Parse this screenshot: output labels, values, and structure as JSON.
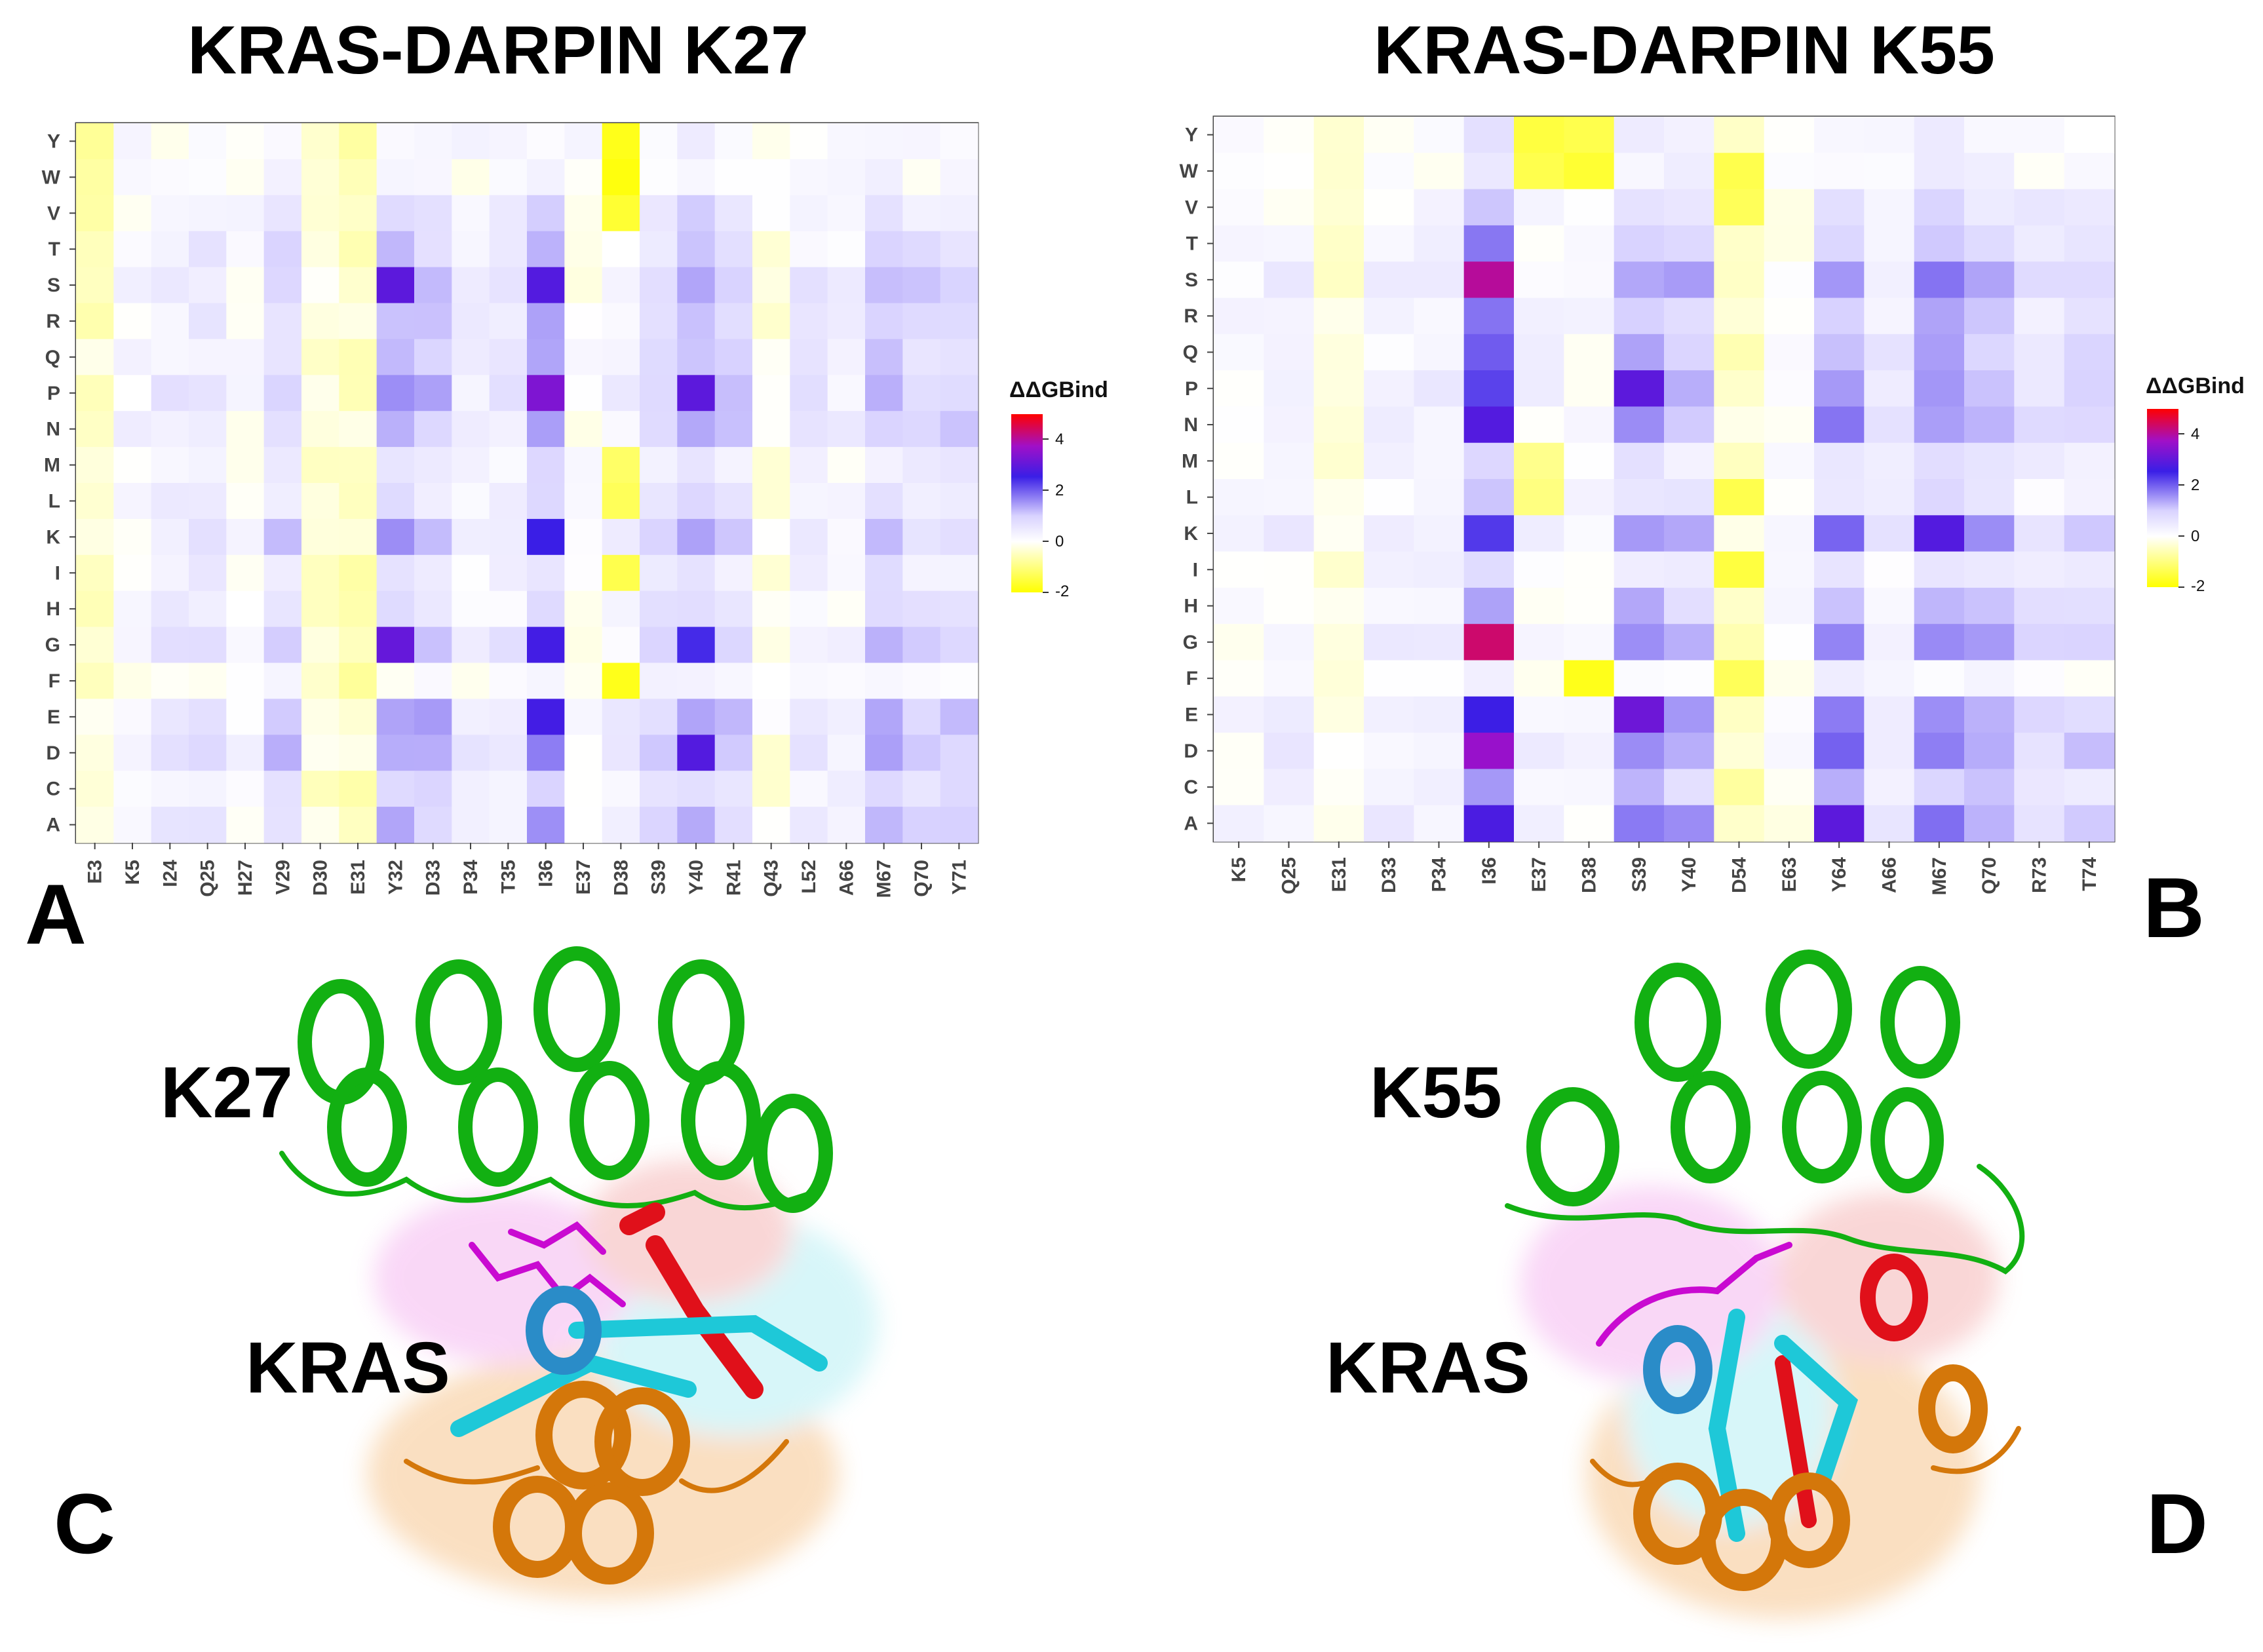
{
  "colors": {
    "low": "#ffff00",
    "zero": "#ffffff",
    "mid": "#3a1ee6",
    "high": "#ff0000",
    "helix_green": "#12b012",
    "kras_orange": "#d4770a",
    "kras_cyan": "#1ec8d8",
    "kras_magenta": "#c90ad1",
    "kras_red": "#e0101a"
  },
  "chart_data": [
    {
      "type": "heatmap",
      "title": "KRAS-DARPIN K27",
      "panel": "A",
      "x_categories": [
        "E3",
        "K5",
        "I24",
        "Q25",
        "H27",
        "V29",
        "D30",
        "E31",
        "Y32",
        "D33",
        "P34",
        "T35",
        "I36",
        "E37",
        "D38",
        "S39",
        "Y40",
        "R41",
        "Q43",
        "L52",
        "A66",
        "M67",
        "Q70",
        "Y71"
      ],
      "y_categories": [
        "Y",
        "W",
        "V",
        "T",
        "S",
        "R",
        "Q",
        "P",
        "N",
        "M",
        "L",
        "K",
        "I",
        "H",
        "G",
        "F",
        "E",
        "D",
        "C",
        "A"
      ],
      "column_base": [
        -0.5,
        0.2,
        0.5,
        0.6,
        0.1,
        1.0,
        -0.4,
        -0.5,
        1.4,
        1.2,
        0.4,
        0.5,
        1.6,
        0.0,
        0.3,
        0.8,
        1.5,
        1.0,
        -0.2,
        0.5,
        0.3,
        1.2,
        0.9,
        1.0
      ],
      "row_scale": [
        0.15,
        0.15,
        0.55,
        0.75,
        1.0,
        0.75,
        0.8,
        1.0,
        0.9,
        0.45,
        0.5,
        0.95,
        0.5,
        0.6,
        1.05,
        0.1,
        1.05,
        1.05,
        0.6,
        0.85
      ],
      "overrides": [
        {
          "row": "S",
          "col": "Y32",
          "value": 2.9
        },
        {
          "row": "S",
          "col": "I36",
          "value": 2.8
        },
        {
          "row": "P",
          "col": "I36",
          "value": 3.3
        },
        {
          "row": "P",
          "col": "Y40",
          "value": 2.9
        },
        {
          "row": "G",
          "col": "Y32",
          "value": 3.0
        },
        {
          "row": "G",
          "col": "I36",
          "value": 2.6
        },
        {
          "row": "G",
          "col": "Y40",
          "value": 2.4
        },
        {
          "row": "D",
          "col": "Y40",
          "value": 2.8
        },
        {
          "row": "E",
          "col": "I36",
          "value": 2.6
        },
        {
          "row": "K",
          "col": "I36",
          "value": 2.5
        },
        {
          "row": "Y",
          "col": "D38",
          "value": -1.8
        },
        {
          "row": "W",
          "col": "D38",
          "value": -1.9
        },
        {
          "row": "V",
          "col": "D38",
          "value": -1.6
        },
        {
          "row": "F",
          "col": "D38",
          "value": -1.8
        },
        {
          "row": "I",
          "col": "D38",
          "value": -1.4
        },
        {
          "row": "M",
          "col": "D38",
          "value": -1.2
        },
        {
          "row": "L",
          "col": "D38",
          "value": -1.3
        }
      ],
      "legend_title": "ΔΔGBind",
      "legend_ticks": [
        "4",
        "2",
        "0",
        "-2"
      ],
      "scale_range": [
        -2,
        5
      ]
    },
    {
      "type": "heatmap",
      "title": "KRAS-DARPIN K55",
      "panel": "B",
      "x_categories": [
        "K5",
        "Q25",
        "E31",
        "D33",
        "P34",
        "I36",
        "E37",
        "D38",
        "S39",
        "Y40",
        "D54",
        "E63",
        "Y64",
        "A66",
        "M67",
        "Q70",
        "R73",
        "T74"
      ],
      "y_categories": [
        "Y",
        "W",
        "V",
        "T",
        "S",
        "R",
        "Q",
        "P",
        "N",
        "M",
        "L",
        "K",
        "I",
        "H",
        "G",
        "F",
        "E",
        "D",
        "C",
        "A"
      ],
      "column_base": [
        0.1,
        0.3,
        -0.3,
        0.3,
        0.4,
        2.2,
        0.2,
        0.1,
        1.5,
        1.3,
        -0.6,
        0.0,
        1.6,
        0.5,
        1.6,
        1.3,
        0.7,
        0.9
      ],
      "row_scale": [
        0.2,
        0.2,
        0.45,
        0.7,
        1.0,
        0.75,
        0.8,
        1.05,
        1.0,
        0.35,
        0.4,
        1.05,
        0.35,
        0.75,
        1.1,
        0.1,
        1.1,
        1.1,
        0.7,
        1.05
      ],
      "overrides": [
        {
          "row": "S",
          "col": "I36",
          "value": 4.0
        },
        {
          "row": "G",
          "col": "I36",
          "value": 4.3
        },
        {
          "row": "D",
          "col": "I36",
          "value": 3.6
        },
        {
          "row": "N",
          "col": "I36",
          "value": 2.8
        },
        {
          "row": "A",
          "col": "I36",
          "value": 2.7
        },
        {
          "row": "P",
          "col": "S39",
          "value": 2.9
        },
        {
          "row": "E",
          "col": "S39",
          "value": 3.1
        },
        {
          "row": "A",
          "col": "Y64",
          "value": 2.9
        },
        {
          "row": "K",
          "col": "M67",
          "value": 2.8
        },
        {
          "row": "Y",
          "col": "E37",
          "value": -1.5
        },
        {
          "row": "W",
          "col": "E37",
          "value": -1.4
        },
        {
          "row": "Y",
          "col": "D38",
          "value": -1.4
        },
        {
          "row": "W",
          "col": "D38",
          "value": -1.6
        },
        {
          "row": "F",
          "col": "D38",
          "value": -1.8
        },
        {
          "row": "M",
          "col": "E37",
          "value": -0.9
        },
        {
          "row": "L",
          "col": "E37",
          "value": -1.0
        },
        {
          "row": "L",
          "col": "D54",
          "value": -1.4
        },
        {
          "row": "I",
          "col": "D54",
          "value": -1.5
        },
        {
          "row": "F",
          "col": "D54",
          "value": -1.3
        },
        {
          "row": "W",
          "col": "D54",
          "value": -1.4
        },
        {
          "row": "V",
          "col": "D54",
          "value": -1.3
        }
      ],
      "legend_title": "ΔΔGBind",
      "legend_ticks": [
        "4",
        "2",
        "0",
        "-2"
      ],
      "scale_range": [
        -2,
        5
      ]
    }
  ],
  "structures": [
    {
      "panel": "C",
      "darpin_label": "K27",
      "target_label": "KRAS"
    },
    {
      "panel": "D",
      "darpin_label": "K55",
      "target_label": "KRAS"
    }
  ]
}
